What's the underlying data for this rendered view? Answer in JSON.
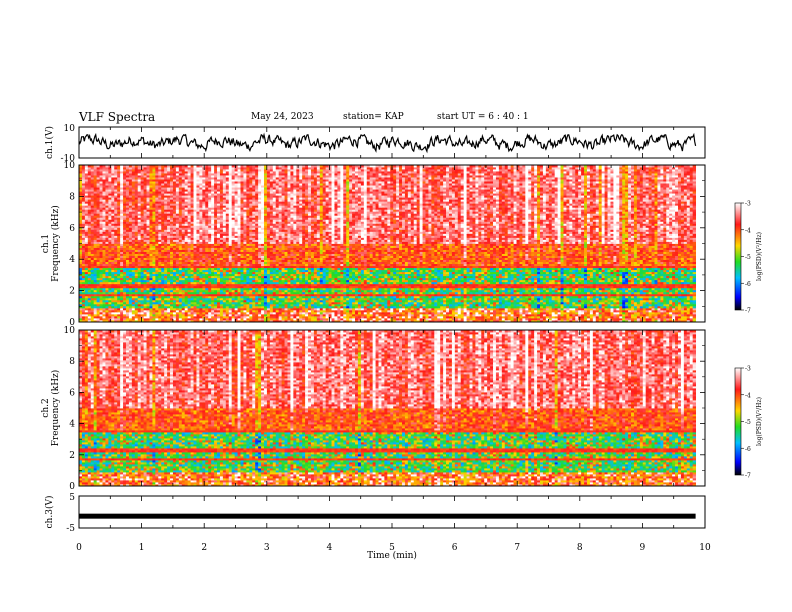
{
  "header": {
    "title": "VLF Spectra",
    "date": "May 24, 2023",
    "station": "station= KAP",
    "start": "start  UT  =   6  : 40 : 1"
  },
  "chart_data": [
    {
      "id": "ch1-waveform",
      "type": "line",
      "ylabel": "ch.1(V)",
      "xlim": [
        0,
        10
      ],
      "ylim": [
        -10,
        10
      ],
      "y_tick_labels": [
        "10",
        "-10"
      ],
      "series": [
        {
          "values_summary": "noisy waveform oscillating roughly between -5 and +4 V",
          "color": "#000000"
        }
      ]
    },
    {
      "id": "ch1-spectrogram",
      "type": "heatmap",
      "ylabel": "ch.1\nFrequency (kHz)",
      "xlim": [
        0,
        9.85
      ],
      "ylim": [
        0,
        10
      ],
      "y_ticks": [
        0,
        2,
        4,
        6,
        8,
        10
      ],
      "colorbar": {
        "label": "log(PSD)(V²/Hz)",
        "range": [
          -7,
          -3
        ],
        "ticks": [
          -3,
          -4,
          -5,
          -6,
          -7
        ]
      },
      "bands": [
        {
          "from": 0,
          "to": 0.9,
          "level": -4.2,
          "note": "mixed banded noise"
        },
        {
          "from": 0.9,
          "to": 3.6,
          "level": -5.4,
          "note": "green/cyan low-power band"
        },
        {
          "from": 3.6,
          "to": 5.0,
          "level": -4.0,
          "note": "yellow/red transition"
        },
        {
          "from": 5.0,
          "to": 10,
          "level": -3.5,
          "note": "red/white high-power band with vertical spikes"
        }
      ]
    },
    {
      "id": "ch2-spectrogram",
      "type": "heatmap",
      "ylabel": "ch.2\nFrequency (kHz)",
      "xlim": [
        0,
        9.85
      ],
      "ylim": [
        0,
        10
      ],
      "y_ticks": [
        0,
        2,
        4,
        6,
        8,
        10
      ],
      "colorbar": {
        "label": "log(PSD)(V²/Hz)",
        "range": [
          -7,
          -3
        ],
        "ticks": [
          -3,
          -4,
          -5,
          -6,
          -7
        ]
      },
      "bands": [
        {
          "from": 0,
          "to": 0.9,
          "level": -4.2,
          "note": "mixed banded noise"
        },
        {
          "from": 0.9,
          "to": 3.6,
          "level": -5.4,
          "note": "green/cyan low-power band"
        },
        {
          "from": 3.6,
          "to": 5.0,
          "level": -4.0,
          "note": "yellow/red transition"
        },
        {
          "from": 5.0,
          "to": 10,
          "level": -3.5,
          "note": "red/white high-power band with vertical spikes"
        }
      ]
    },
    {
      "id": "ch3-waveform",
      "type": "line",
      "ylabel": "ch.3(V)",
      "xlabel": "Time (min)",
      "xlim": [
        0,
        10
      ],
      "ylim": [
        -5,
        5
      ],
      "x_ticks": [
        0,
        1,
        2,
        3,
        4,
        5,
        6,
        7,
        8,
        9,
        10
      ],
      "y_tick_labels": [
        "5",
        "-5"
      ],
      "series": [
        {
          "values_summary": "flat thick line near -1.3 V",
          "level": -1.3,
          "color": "#000000"
        }
      ]
    }
  ],
  "colors": {
    "high": "#ffffff",
    "red": "#ff1a1a",
    "yellow": "#ffd700",
    "green": "#22dd22",
    "cyan": "#22dddd",
    "blue": "#0000ff",
    "low": "#000000"
  }
}
